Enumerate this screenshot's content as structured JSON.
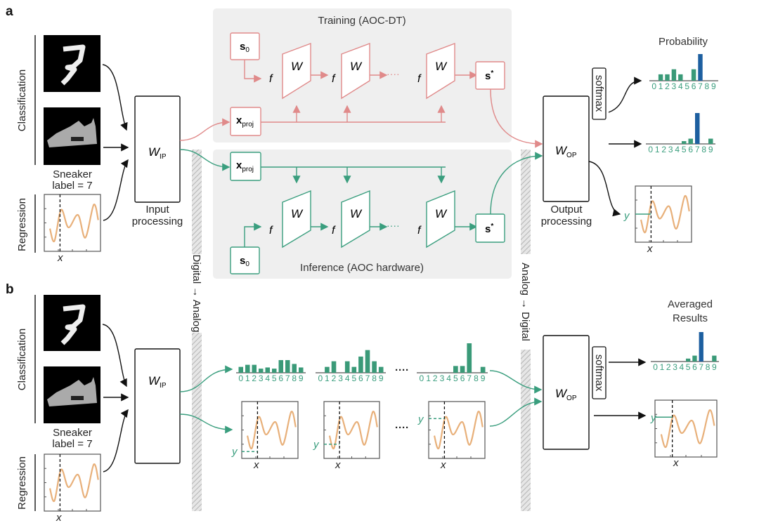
{
  "panel_labels": {
    "a": "a",
    "b": "b"
  },
  "inputs": {
    "classification": "Classification",
    "regression": "Regression",
    "sneaker_line1": "Sneaker",
    "sneaker_line2": "label = 7",
    "x": "x"
  },
  "input_processing": {
    "w": "W",
    "sub": "IP",
    "label1": "Input",
    "label2": "processing"
  },
  "converters": {
    "d2a": "Digital → Analog",
    "a2d": "Analog → Digital"
  },
  "training": {
    "title": "Training (AOC-DT)"
  },
  "inference": {
    "title": "Inference (AOC hardware)"
  },
  "symbols": {
    "s": "s",
    "zero": "0",
    "star": "*",
    "x": "x",
    "proj": "proj",
    "f": "f",
    "W": "W",
    "dots": "····"
  },
  "output": {
    "w": "W",
    "sub": "OP",
    "label1": "Output",
    "label2": "processing",
    "softmax": "softmax",
    "probability": "Probability",
    "averaged1": "Averaged",
    "averaged2": "Results",
    "y": "y"
  },
  "digits": [
    "0",
    "1",
    "2",
    "3",
    "4",
    "5",
    "6",
    "7",
    "8",
    "9"
  ],
  "bar_charts": {
    "a_probability": [
      0,
      0.24,
      0.24,
      0.43,
      0.24,
      0,
      0.43,
      1,
      0,
      0
    ],
    "a_softmax_output": [
      0,
      0,
      0,
      0,
      0,
      0.09,
      0.17,
      1,
      0,
      0.17
    ],
    "b_run_1": [
      0.2,
      0.27,
      0.27,
      0.14,
      0.18,
      0.14,
      0.43,
      0.43,
      0.3,
      0.18
    ],
    "b_run_2": [
      0,
      0.2,
      0.39,
      0,
      0.39,
      0.2,
      0.55,
      0.77,
      0.39,
      0.2
    ],
    "b_run_n": [
      0,
      0,
      0,
      0,
      0,
      0.23,
      0.23,
      1,
      0,
      0.2
    ],
    "b_averaged": [
      0,
      0,
      0,
      0,
      0,
      0.1,
      0.2,
      1,
      0,
      0.2
    ],
    "highlight_class": 7
  },
  "colors": {
    "training": "#e08a8a",
    "inference": "#3a9e7e",
    "bar": "#3a9a78",
    "bar_highlight": "#1d5fa0",
    "curve": "#e8b07a",
    "panel_bg": "#efefef"
  }
}
